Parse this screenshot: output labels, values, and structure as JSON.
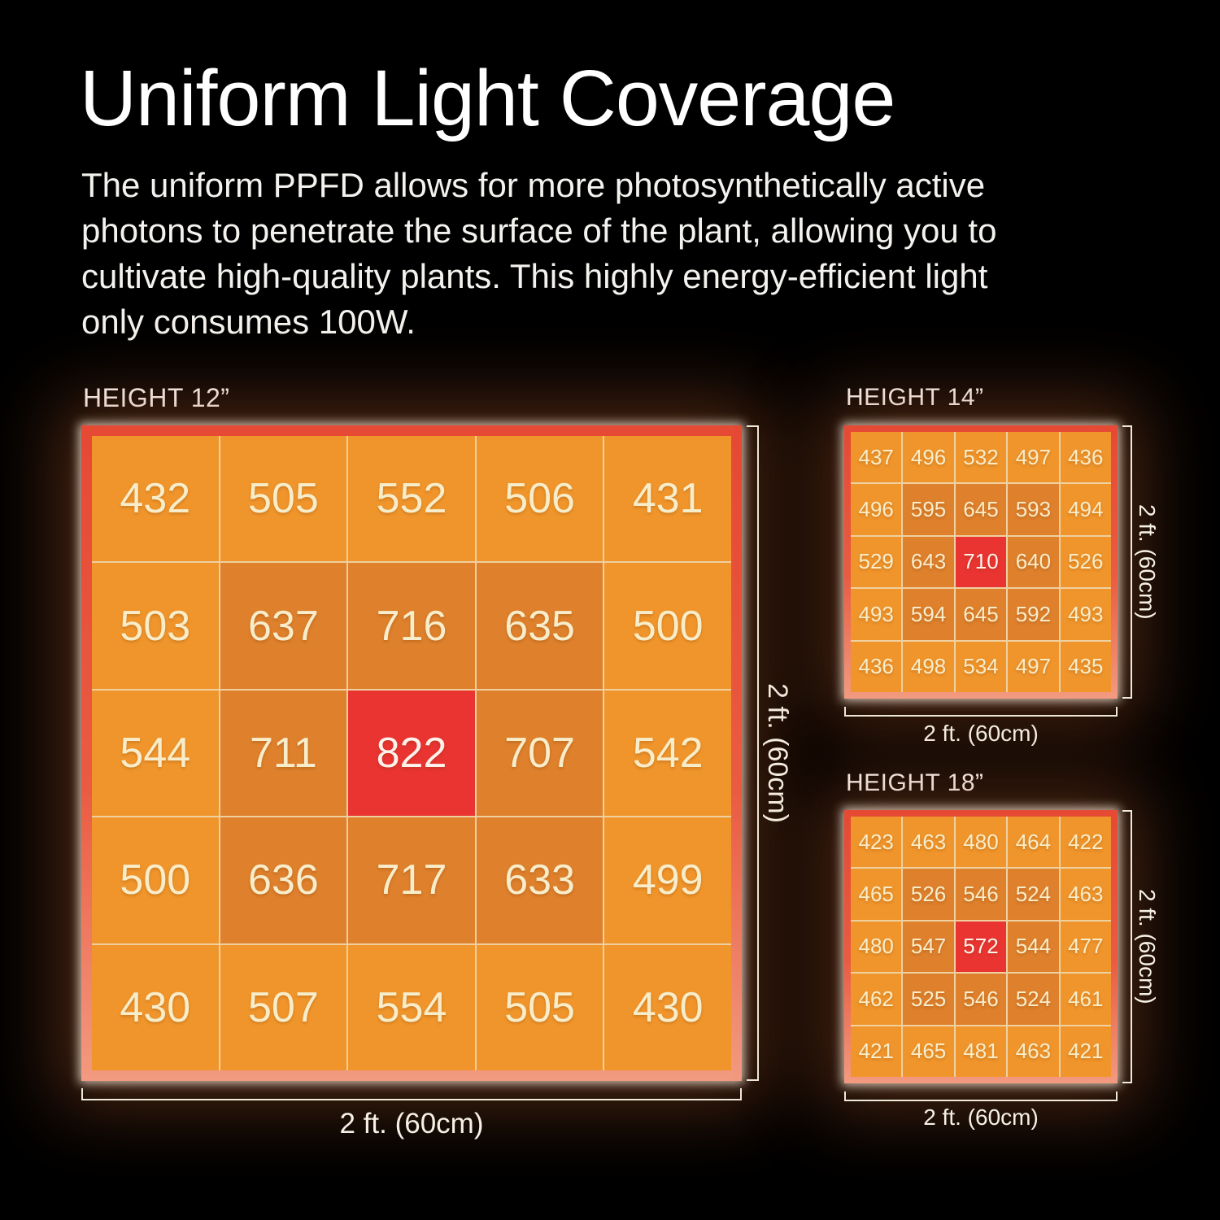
{
  "title": "Uniform Light Coverage",
  "description_lines": [
    "The uniform PPFD allows for more photosynthetically active",
    "photons to penetrate the surface of the plant, allowing you to",
    "cultivate high-quality plants. This highly energy-efficient light",
    "only consumes 100W."
  ],
  "colors": {
    "background": "#000000",
    "title_text": "#ffffff",
    "body_text": "#f4f2ee",
    "cell_light": "#f0952b",
    "cell_dark": "#de802c",
    "cell_peak": "#e93431",
    "cell_text": "#f8edca",
    "grid_border_top": "#e64934",
    "grid_border_bottom": "#f29a80",
    "grid_gap": "#efd0a0",
    "bracket": "#efe9da"
  },
  "chart_data": [
    {
      "type": "heatmap",
      "title": "HEIGHT 12”",
      "x_label": "2 ft. (60cm)",
      "y_label": "2 ft. (60cm)",
      "values": [
        [
          432,
          505,
          552,
          506,
          431
        ],
        [
          503,
          637,
          716,
          635,
          500
        ],
        [
          544,
          711,
          822,
          707,
          542
        ],
        [
          500,
          636,
          717,
          633,
          499
        ],
        [
          430,
          507,
          554,
          505,
          430
        ]
      ]
    },
    {
      "type": "heatmap",
      "title": "HEIGHT 14”",
      "x_label": "2 ft. (60cm)",
      "y_label": "2 ft. (60cm)",
      "values": [
        [
          437,
          496,
          532,
          497,
          436
        ],
        [
          496,
          595,
          645,
          593,
          494
        ],
        [
          529,
          643,
          710,
          640,
          526
        ],
        [
          493,
          594,
          645,
          592,
          493
        ],
        [
          436,
          498,
          534,
          497,
          435
        ]
      ]
    },
    {
      "type": "heatmap",
      "title": "HEIGHT 18”",
      "x_label": "2 ft. (60cm)",
      "y_label": "2 ft. (60cm)",
      "values": [
        [
          423,
          463,
          480,
          464,
          422
        ],
        [
          465,
          526,
          546,
          524,
          463
        ],
        [
          480,
          547,
          572,
          544,
          477
        ],
        [
          462,
          525,
          546,
          524,
          461
        ],
        [
          421,
          465,
          481,
          463,
          421
        ]
      ]
    }
  ]
}
